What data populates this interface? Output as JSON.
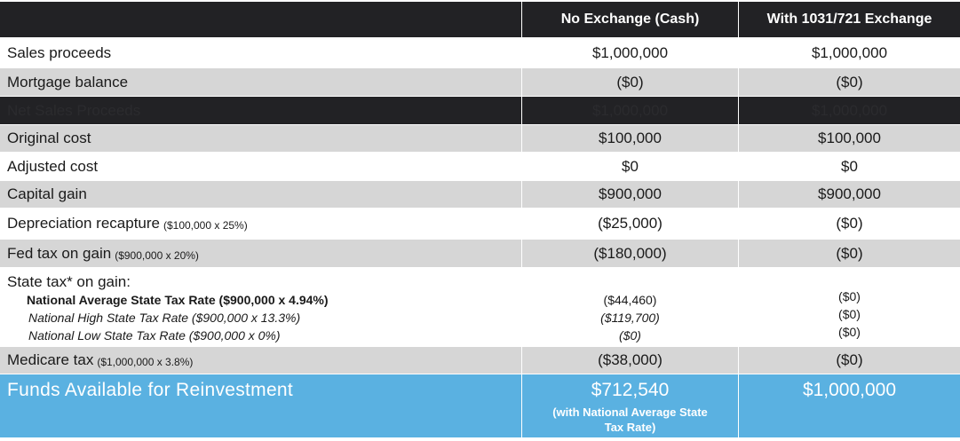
{
  "header": {
    "col_no_exchange": "No Exchange (Cash)",
    "col_with_exchange": "With 1031/721 Exchange"
  },
  "rows": {
    "sales_proceeds": {
      "label": "Sales proceeds",
      "no_exchange": "$1,000,000",
      "with_exchange": "$1,000,000"
    },
    "mortgage_balance": {
      "label": "Mortgage balance",
      "no_exchange": "($0)",
      "with_exchange": "($0)"
    },
    "net_sales_proceeds": {
      "label": "Net Sales Proceeds",
      "no_exchange": "$1,000,000",
      "with_exchange": "$1,000,000"
    },
    "original_cost": {
      "label": "Original cost",
      "no_exchange": "$100,000",
      "with_exchange": "$100,000"
    },
    "adjusted_cost": {
      "label": "Adjusted cost",
      "no_exchange": "$0",
      "with_exchange": "$0"
    },
    "capital_gain": {
      "label": "Capital gain",
      "no_exchange": "$900,000",
      "with_exchange": "$900,000"
    },
    "depreciation_recapture": {
      "label": "Depreciation recapture",
      "note": "($100,000 x 25%)",
      "no_exchange": "($25,000)",
      "with_exchange": "($0)"
    },
    "fed_tax": {
      "label": "Fed tax on gain",
      "note": "($900,000 x 20%)",
      "no_exchange": "($180,000)",
      "with_exchange": "($0)"
    },
    "state_tax": {
      "label": "State tax* on gain:",
      "avg_label": "National Average State Tax Rate ($900,000 x 4.94%)",
      "high_label": "National High State Tax Rate ($900,000 x 13.3%)",
      "low_label": "National Low State Tax Rate ($900,000 x 0%)",
      "no_exchange_avg": "($44,460)",
      "no_exchange_high": "($119,700)",
      "no_exchange_low": "($0)",
      "with_exchange_avg": "($0)",
      "with_exchange_high": "($0)",
      "with_exchange_low": "($0)"
    },
    "medicare_tax": {
      "label": "Medicare tax",
      "note": "($1,000,000 x 3.8%)",
      "no_exchange": "($38,000)",
      "with_exchange": "($0)"
    },
    "funds_available": {
      "label": "Funds Available for Reinvestment",
      "no_exchange": "$712,540",
      "no_exchange_note": "(with National Average State Tax Rate)",
      "with_exchange": "$1,000,000"
    }
  },
  "colors": {
    "header_bg": "#222225",
    "gray_row": "#d6d6d6",
    "highlight_row": "#5ab1e1"
  }
}
